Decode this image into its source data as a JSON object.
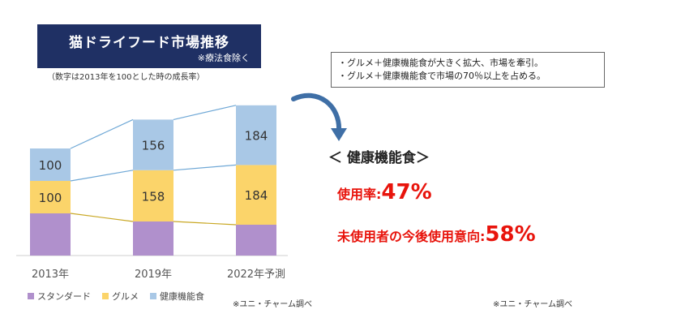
{
  "title": "猫ドライフード市場推移",
  "title_note": "※療法食除く",
  "subtitle": "（数字は2013年を100とした時の成長率）",
  "chart_data": {
    "type": "bar",
    "stacked": true,
    "categories": [
      "2013年",
      "2019年",
      "2022年予測"
    ],
    "series": [
      {
        "name": "スタンダード",
        "values": [
          130,
          105,
          95
        ],
        "color": "#b090cc",
        "label": false
      },
      {
        "name": "グルメ",
        "values": [
          100,
          158,
          184
        ],
        "color": "#fbd46a",
        "label": true
      },
      {
        "name": "健康機能食",
        "values": [
          100,
          156,
          184
        ],
        "color": "#a9c8e6",
        "label": true
      }
    ],
    "connector_colors": [
      "#c9a825",
      "#6fa8d6"
    ],
    "grid": false,
    "legend_position": "bottom"
  },
  "source_left": "※ユニ・チャーム調べ",
  "notes": [
    "・グルメ＋健康機能食が大きく拡大、市場を牽引。",
    "・グルメ＋健康機能食で市場の70％以上を占める。"
  ],
  "right_title": "＜ 健康機能食＞",
  "stat1": {
    "label": "使用率:",
    "value": "47%"
  },
  "stat2": {
    "label": "未使用者の今後使用意向:",
    "value": "58%"
  },
  "source_right": "※ユニ・チャーム調べ",
  "colors": {
    "accent_red": "#e8140c",
    "title_bg": "#1f3064",
    "arrow": "#3f6fa6"
  }
}
